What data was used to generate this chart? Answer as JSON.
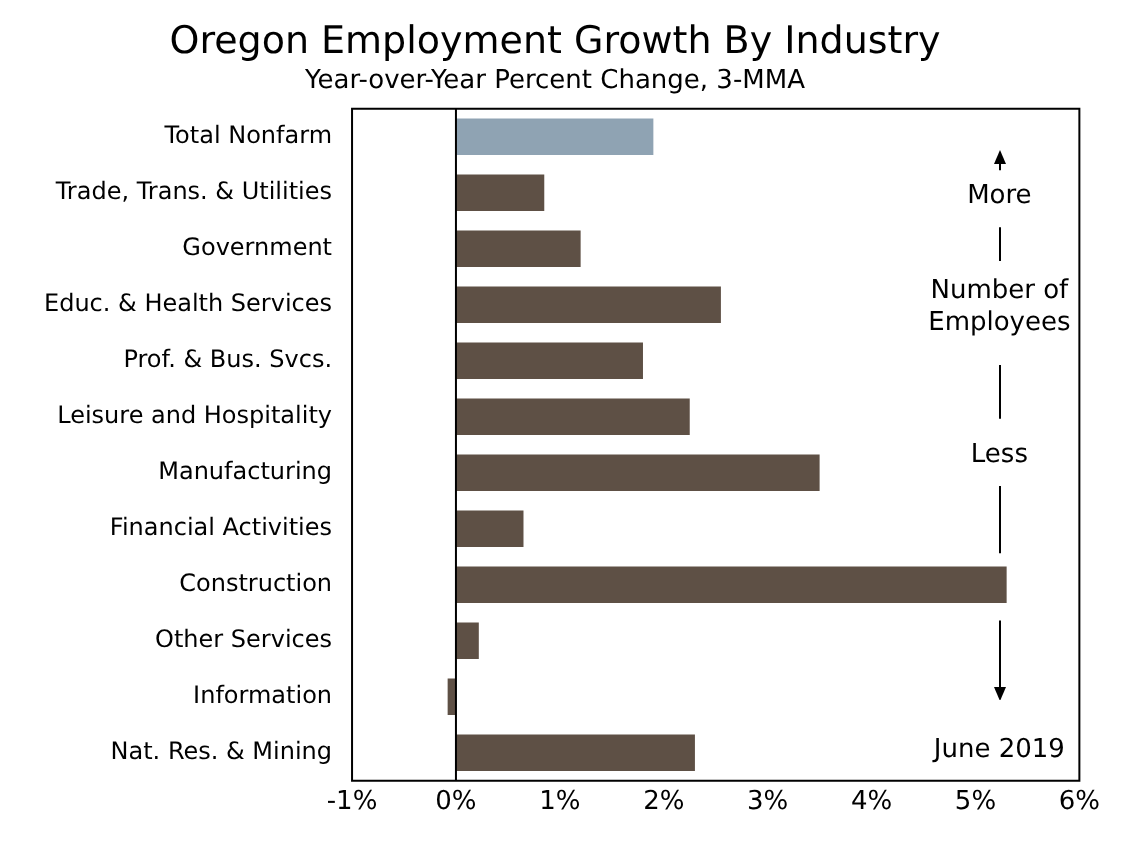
{
  "chart_data": {
    "type": "bar",
    "orientation": "horizontal",
    "title": "Oregon Employment Growth By Industry",
    "subtitle": "Year-over-Year Percent Change, 3-MMA",
    "categories": [
      "Total Nonfarm",
      "Trade, Trans. & Utilities",
      "Government",
      "Educ. & Health Services",
      "Prof. & Bus. Svcs.",
      "Leisure and Hospitality",
      "Manufacturing",
      "Financial Activities",
      "Construction",
      "Other Services",
      "Information",
      "Nat. Res. & Mining"
    ],
    "values": [
      1.9,
      0.85,
      1.2,
      2.55,
      1.8,
      2.25,
      3.5,
      0.65,
      5.3,
      0.22,
      -0.08,
      2.3
    ],
    "colors": [
      "#8fa3b3",
      "#5e5045",
      "#5e5045",
      "#5e5045",
      "#5e5045",
      "#5e5045",
      "#5e5045",
      "#5e5045",
      "#5e5045",
      "#5e5045",
      "#5e5045",
      "#5e5045"
    ],
    "xlim": [
      -1,
      6
    ],
    "xticks": [
      {
        "value": -1,
        "label": "-1%"
      },
      {
        "value": 0,
        "label": "0%"
      },
      {
        "value": 1,
        "label": "1%"
      },
      {
        "value": 2,
        "label": "2%"
      },
      {
        "value": 3,
        "label": "3%"
      },
      {
        "value": 4,
        "label": "4%"
      },
      {
        "value": 5,
        "label": "5%"
      },
      {
        "value": 6,
        "label": "6%"
      }
    ],
    "ref_lines": [
      {
        "axis": "x",
        "value": 0,
        "color": "#000000"
      }
    ],
    "grid": false,
    "legend": false,
    "annotations": [
      "More",
      "Number of\nEmployees",
      "Less",
      "June 2019"
    ]
  }
}
